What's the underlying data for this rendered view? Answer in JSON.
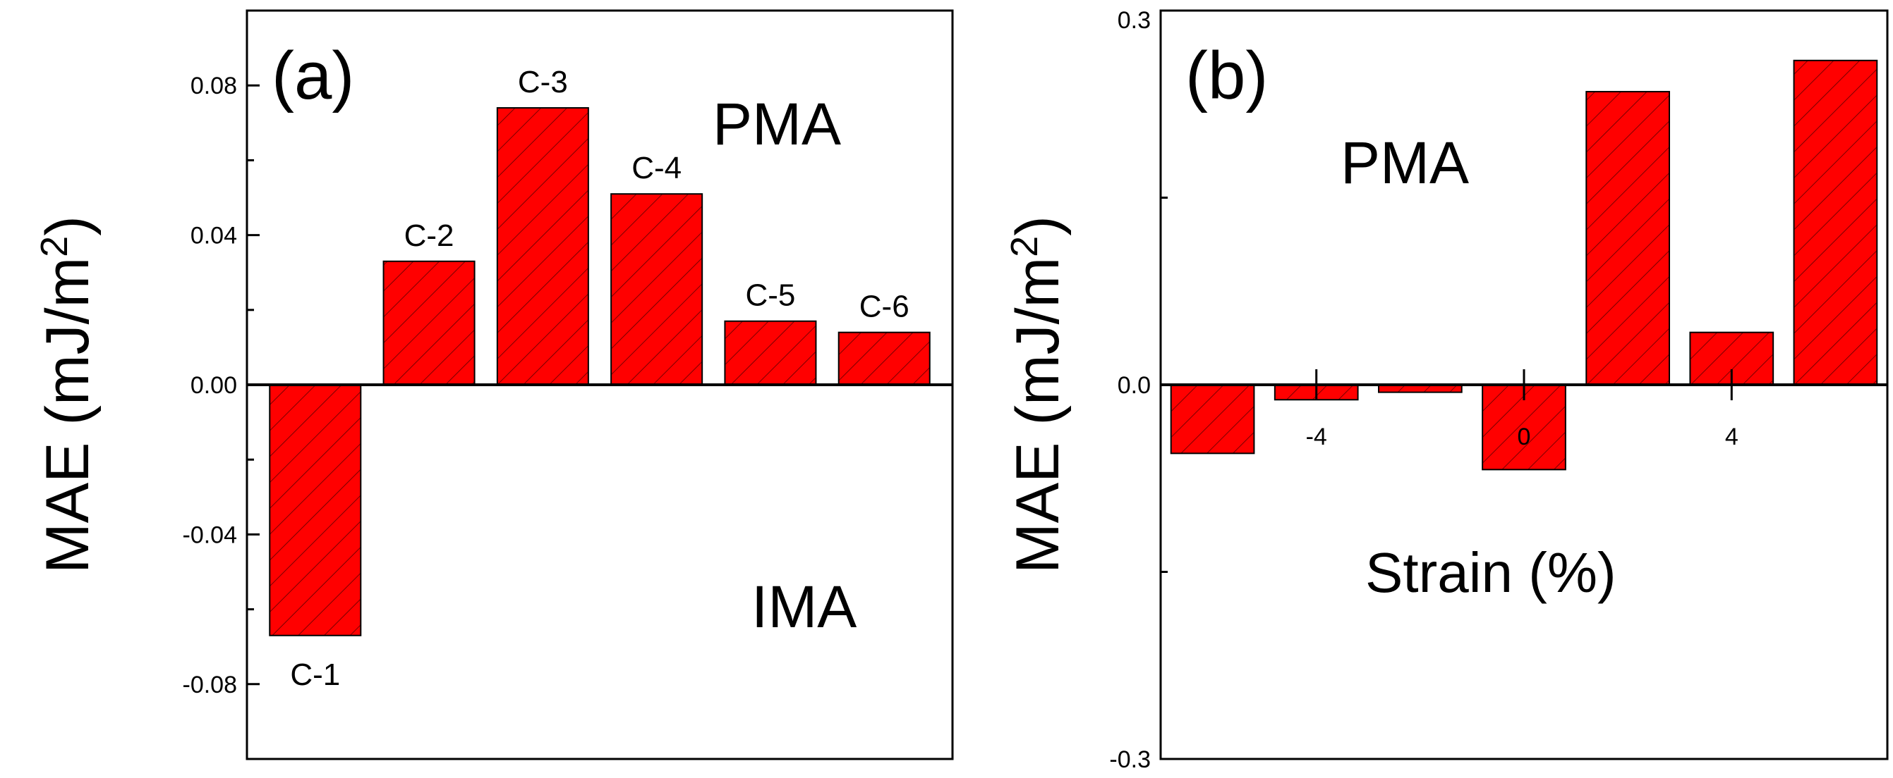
{
  "colors": {
    "bar_fill": "#ff0000",
    "hatch": "#7a0000",
    "axis": "#000000"
  },
  "chart_data": [
    {
      "panel": "(a)",
      "type": "bar",
      "categories": [
        "C-1",
        "C-2",
        "C-3",
        "C-4",
        "C-5",
        "C-6"
      ],
      "values": [
        -0.067,
        0.033,
        0.074,
        0.051,
        0.017,
        0.014
      ],
      "ylabel_main": "MAE (mJ/m",
      "ylabel_sup": "2",
      "ylabel_close": ")",
      "xlabel": "",
      "ylim": [
        -0.1,
        0.1
      ],
      "yticks": [
        0.08,
        0.04,
        0.0,
        -0.04,
        -0.08
      ],
      "ytick_labels": [
        "0.08",
        "0.04",
        "0.00",
        "-0.04",
        "-0.08"
      ],
      "region_top": "PMA",
      "region_bottom": "IMA"
    },
    {
      "panel": "(b)",
      "type": "bar",
      "x": [
        -6,
        -4,
        -2,
        0,
        2,
        4,
        6
      ],
      "values": [
        -0.055,
        -0.012,
        -0.006,
        -0.068,
        0.235,
        0.042,
        0.26
      ],
      "ylabel_main": "MAE (mJ/m",
      "ylabel_sup": "2",
      "ylabel_close": ")",
      "xlabel": "Strain (%)",
      "xlim": [
        -7,
        7
      ],
      "xticks": [
        -4,
        0,
        4
      ],
      "xtick_labels": [
        "-4",
        "0",
        "4"
      ],
      "ylim": [
        -0.3,
        0.3
      ],
      "yticks": [
        0.3,
        0.0,
        -0.3
      ],
      "ytick_labels": [
        "0.3",
        "0.0",
        "-0.3"
      ],
      "region_top": "PMA"
    }
  ]
}
